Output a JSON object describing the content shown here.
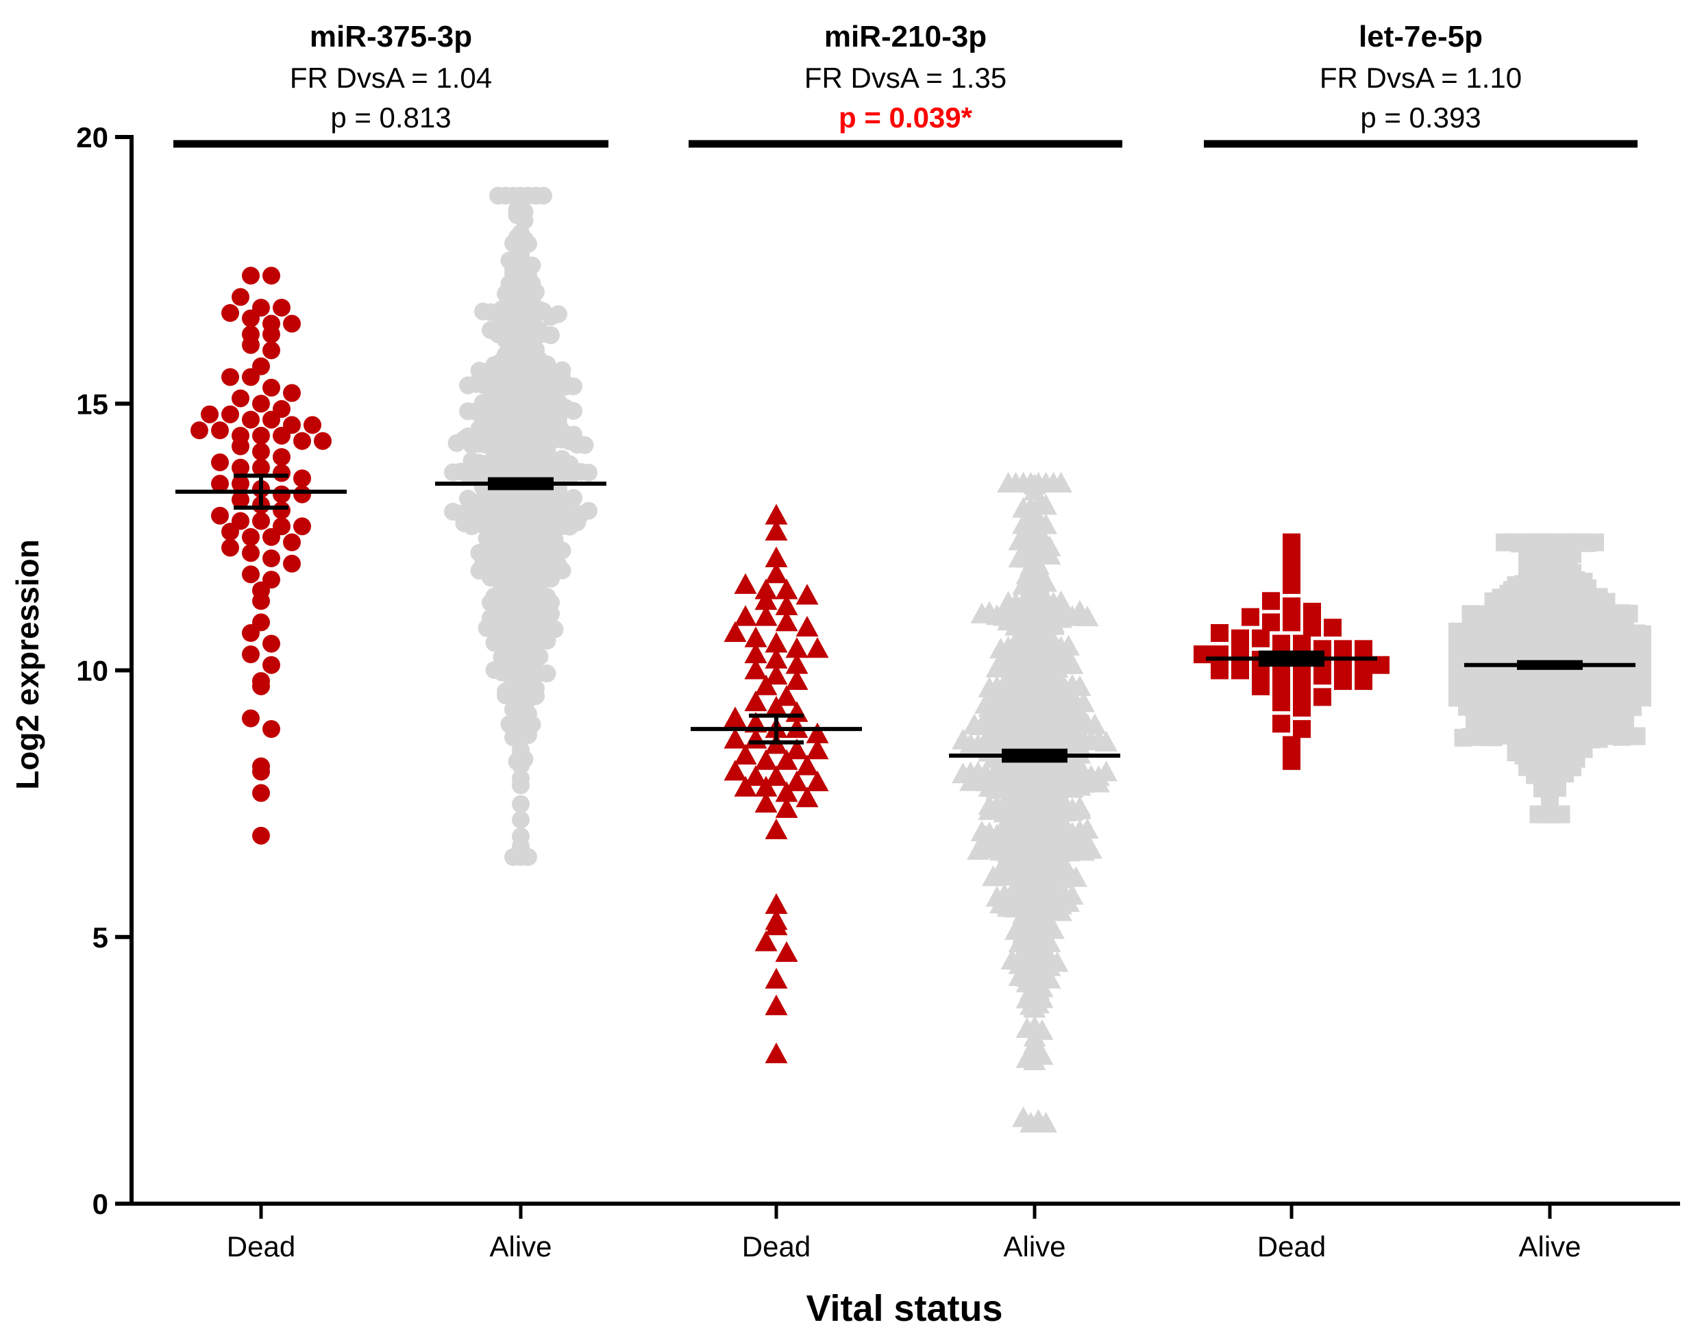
{
  "colors": {
    "dead": "#c00000",
    "alive": "#d6d6d6",
    "axis": "#000000",
    "significant": "#ff0000"
  },
  "chart_data": {
    "type": "scatter",
    "subtype": "grouped dot plot with mean and SEM",
    "xlabel": "Vital status",
    "ylabel": "Log2 expression",
    "ylim": [
      0,
      20
    ],
    "yticks": [
      "0",
      "5",
      "10",
      "15",
      "20"
    ],
    "grid": false,
    "panels": [
      {
        "title": "miR-375-3p",
        "fr": "FR DvsA = 1.04",
        "p": "p = 0.813",
        "significant": false,
        "marker": "circle",
        "groups": [
          {
            "label": "Dead",
            "mean": 13.35,
            "sem": 0.3,
            "values": [
              17.4,
              17.4,
              17.0,
              16.8,
              16.8,
              16.7,
              16.6,
              16.5,
              16.5,
              16.3,
              16.3,
              16.1,
              16.0,
              15.7,
              15.5,
              15.5,
              15.3,
              15.2,
              15.1,
              15.0,
              14.9,
              14.8,
              14.8,
              14.7,
              14.7,
              14.6,
              14.6,
              14.5,
              14.5,
              14.4,
              14.4,
              14.4,
              14.3,
              14.3,
              14.2,
              14.1,
              14.0,
              13.9,
              13.8,
              13.8,
              13.7,
              13.6,
              13.5,
              13.5,
              13.4,
              13.3,
              13.3,
              13.2,
              13.1,
              13.0,
              12.9,
              12.8,
              12.8,
              12.7,
              12.7,
              12.6,
              12.5,
              12.5,
              12.4,
              12.3,
              12.2,
              12.1,
              12.0,
              11.8,
              11.7,
              11.5,
              11.3,
              10.9,
              10.7,
              10.5,
              10.3,
              10.1,
              9.8,
              9.7,
              9.1,
              8.9,
              8.2,
              8.1,
              7.7,
              6.9
            ]
          },
          {
            "label": "Alive",
            "mean": 13.5,
            "sem": 0.07,
            "n": 640,
            "range": [
              6.5,
              18.9
            ]
          }
        ]
      },
      {
        "title": "miR-210-3p",
        "fr": "FR DvsA = 1.35",
        "p": "p = 0.039*",
        "significant": true,
        "marker": "triangle",
        "groups": [
          {
            "label": "Dead",
            "mean": 8.9,
            "sem": 0.25,
            "values": [
              12.9,
              12.6,
              12.1,
              11.8,
              11.6,
              11.5,
              11.5,
              11.4,
              11.3,
              11.2,
              11.0,
              11.0,
              10.9,
              10.8,
              10.7,
              10.6,
              10.5,
              10.4,
              10.4,
              10.3,
              10.2,
              10.1,
              10.0,
              9.9,
              9.8,
              9.7,
              9.5,
              9.4,
              9.3,
              9.2,
              9.1,
              9.0,
              8.9,
              8.9,
              8.8,
              8.7,
              8.7,
              8.6,
              8.5,
              8.5,
              8.4,
              8.3,
              8.3,
              8.2,
              8.1,
              8.0,
              8.0,
              7.9,
              7.9,
              7.8,
              7.8,
              7.7,
              7.6,
              7.5,
              7.4,
              7.0,
              5.6,
              5.3,
              5.2,
              4.9,
              4.7,
              4.2,
              3.7,
              2.8
            ]
          },
          {
            "label": "Alive",
            "mean": 8.4,
            "sem": 0.08,
            "n": 640,
            "range": [
              1.5,
              13.5
            ]
          }
        ]
      },
      {
        "title": "let-7e-5p",
        "fr": "FR DvsA = 1.10",
        "p": "p = 0.393",
        "significant": false,
        "marker": "square",
        "groups": [
          {
            "label": "Dead",
            "mean": 10.22,
            "sem": 0.1,
            "values": [
              12.4,
              12.1,
              11.8,
              11.6,
              11.3,
              11.2,
              11.1,
              11.0,
              10.9,
              10.9,
              10.8,
              10.8,
              10.7,
              10.6,
              10.6,
              10.5,
              10.5,
              10.4,
              10.4,
              10.4,
              10.3,
              10.3,
              10.3,
              10.2,
              10.2,
              10.2,
              10.2,
              10.1,
              10.1,
              10.1,
              10.0,
              10.0,
              10.0,
              9.9,
              9.9,
              9.9,
              9.8,
              9.8,
              9.7,
              9.7,
              9.6,
              9.5,
              9.4,
              9.3,
              9.0,
              8.9,
              8.6,
              8.3
            ]
          },
          {
            "label": "Alive",
            "mean": 10.1,
            "sem": 0.04,
            "n": 640,
            "range": [
              7.3,
              12.4
            ]
          }
        ]
      }
    ]
  }
}
